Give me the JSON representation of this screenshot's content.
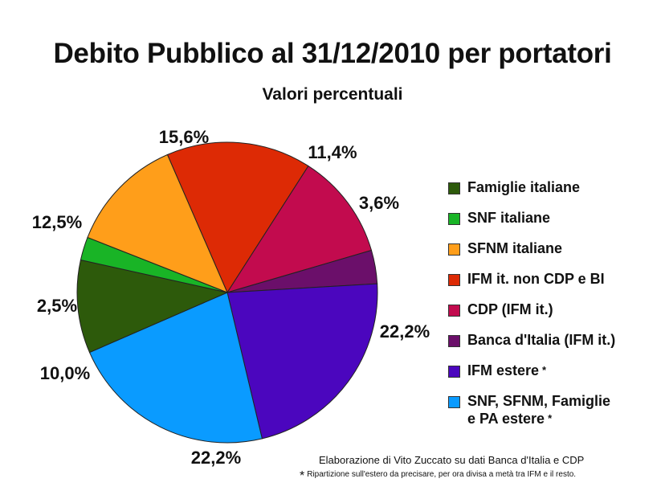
{
  "chart_data": {
    "type": "pie",
    "title": "Debito Pubblico al 31/12/2010 per portatori",
    "subtitle": "Valori percentuali",
    "slices": [
      {
        "label": "IFM it. non CDP e BI",
        "value": 15.6,
        "value_label": "15,6%",
        "color": "#dd2a05"
      },
      {
        "label": "CDP (IFM it.)",
        "value": 11.4,
        "value_label": "11,4%",
        "color": "#c20b4e"
      },
      {
        "label": "Banca d'Italia (IFM it.)",
        "value": 3.6,
        "value_label": "3,6%",
        "color": "#6b0f6a"
      },
      {
        "label": "IFM estere",
        "value": 22.2,
        "value_label": "22,2%",
        "color": "#4b06be"
      },
      {
        "label": "SNF, SFNM, Famiglie e PA estere",
        "value": 22.2,
        "value_label": "22,2%",
        "color": "#0a9bff"
      },
      {
        "label": "Famiglie italiane",
        "value": 10.0,
        "value_label": "10,0%",
        "color": "#2d5a0b"
      },
      {
        "label": "SNF italiane",
        "value": 2.5,
        "value_label": "2,5%",
        "color": "#19b426"
      },
      {
        "label": "SFNM italiane",
        "value": 12.5,
        "value_label": "12,5%",
        "color": "#ff9e1a"
      }
    ],
    "start_angle_deg": -23.5,
    "direction": "clockwise",
    "legend_position": "right",
    "legend": [
      {
        "label": "Famiglie italiane",
        "color": "#2d5a0b",
        "note": ""
      },
      {
        "label": "SNF italiane",
        "color": "#19b426",
        "note": ""
      },
      {
        "label": "SFNM italiane",
        "color": "#ff9e1a",
        "note": ""
      },
      {
        "label": "IFM it. non CDP e BI",
        "color": "#dd2a05",
        "note": ""
      },
      {
        "label": "CDP (IFM it.)",
        "color": "#c20b4e",
        "note": ""
      },
      {
        "label": "Banca d'Italia (IFM it.)",
        "color": "#6b0f6a",
        "note": ""
      },
      {
        "label": "IFM estere",
        "color": "#4b06be",
        "note": "*"
      },
      {
        "label": "SNF, SFNM, Famiglie",
        "label_line2": "e PA estere",
        "color": "#0a9bff",
        "note": "*"
      }
    ]
  },
  "credit": "Elaborazione di Vito Zuccato su dati Banca d'Italia e CDP",
  "footnote": {
    "marker": "*",
    "text": "Ripartizione sull'estero da precisare, per ora divisa a metà tra IFM e il resto."
  }
}
